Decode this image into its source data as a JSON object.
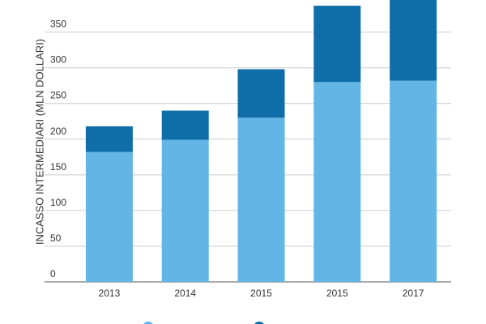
{
  "chart_data": {
    "type": "stacked_bar",
    "y_label": "INCASSO INTERMEDIARI (MLN DOLLARI)",
    "categories": [
      "2013",
      "2014",
      "2015",
      "2015",
      "2017"
    ],
    "series": [
      {
        "color": "#62b5e5",
        "values": [
          182,
          199,
          230,
          280,
          282
        ]
      },
      {
        "color": "#0f6ea8",
        "values": [
          36,
          41,
          68,
          107,
          113
        ]
      }
    ],
    "ylim": [
      0,
      395
    ],
    "yticks": [
      0,
      50,
      100,
      150,
      200,
      250,
      300,
      350
    ],
    "grid": true
  }
}
